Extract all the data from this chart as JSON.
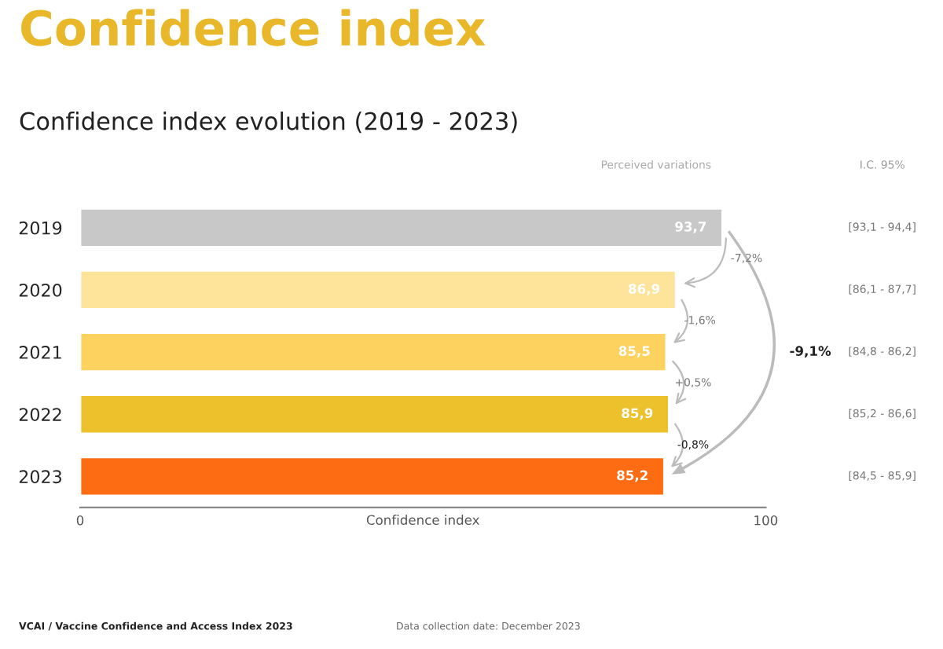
{
  "chart_data": {
    "type": "bar",
    "orientation": "horizontal",
    "title": "Confidence index",
    "subtitle": "Confidence index evolution (2019 - 2023)",
    "xlabel": "Confidence index",
    "categories": [
      "2019",
      "2020",
      "2021",
      "2022",
      "2023"
    ],
    "values": [
      93.7,
      86.9,
      85.5,
      85.9,
      85.2
    ],
    "value_labels": [
      "93,7",
      "86,9",
      "85,5",
      "85,9",
      "85,2"
    ],
    "colors": [
      "#c8c8c8",
      "#fde49a",
      "#fdd25e",
      "#ecc12b",
      "#fd6b12"
    ],
    "xlim": [
      0,
      100
    ],
    "xticks": [
      0,
      100
    ],
    "grid": false,
    "legend": false,
    "annotations": [
      "Perceived variations",
      "-7,2%",
      "-1,6%",
      "+0,5%",
      "-0,8%",
      "-9,1%",
      "I.C. 95%",
      "[93,1 - 94,4]",
      "[86,1 - 87,7]",
      "[84,8 - 86,2]",
      "[85,2 - 86,6]",
      "[84,5 - 85,9]",
      "VCAI / Vaccine Confidence and Access Index 2023",
      "Data collection date: December 2023"
    ]
  }
}
